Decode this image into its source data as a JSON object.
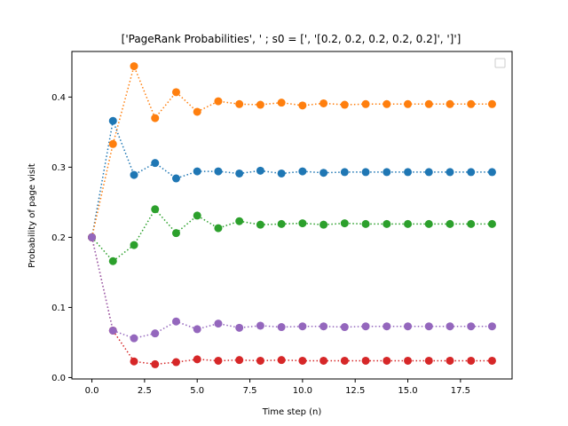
{
  "chart_data": {
    "type": "line",
    "title": "['PageRank Probabilities', ' ; s0 = [', '[0.2, 0.2, 0.2, 0.2, 0.2]', ']']",
    "xlabel": "Time step (n)",
    "ylabel": "Probability of page visit",
    "xlim": [
      -0.95,
      19.95
    ],
    "ylim": [
      -0.002,
      0.465
    ],
    "xticks": [
      0,
      2.5,
      5,
      7.5,
      10,
      12.5,
      15,
      17.5
    ],
    "xtick_labels": [
      "0.0",
      "2.5",
      "5.0",
      "7.5",
      "10.0",
      "12.5",
      "15.0",
      "17.5"
    ],
    "yticks": [
      0.0,
      0.1,
      0.2,
      0.3,
      0.4
    ],
    "ytick_labels": [
      "0.0",
      "0.1",
      "0.2",
      "0.3",
      "0.4"
    ],
    "legend": "top-right (empty)",
    "grid": false,
    "line_style": "dotted",
    "marker": "circle",
    "x": [
      0,
      1,
      2,
      3,
      4,
      5,
      6,
      7,
      8,
      9,
      10,
      11,
      12,
      13,
      14,
      15,
      16,
      17,
      18,
      19
    ],
    "series": [
      {
        "color": "#1f77b4",
        "values": [
          0.2,
          0.366,
          0.289,
          0.306,
          0.284,
          0.294,
          0.294,
          0.291,
          0.295,
          0.291,
          0.294,
          0.292,
          0.293,
          0.293,
          0.293,
          0.293,
          0.293,
          0.293,
          0.293,
          0.293
        ]
      },
      {
        "color": "#ff7f0e",
        "values": [
          0.2,
          0.333,
          0.444,
          0.37,
          0.407,
          0.379,
          0.394,
          0.39,
          0.389,
          0.392,
          0.388,
          0.391,
          0.389,
          0.39,
          0.39,
          0.39,
          0.39,
          0.39,
          0.39,
          0.39
        ]
      },
      {
        "color": "#2ca02c",
        "values": [
          0.2,
          0.166,
          0.189,
          0.24,
          0.206,
          0.231,
          0.213,
          0.223,
          0.218,
          0.219,
          0.22,
          0.218,
          0.22,
          0.219,
          0.219,
          0.219,
          0.219,
          0.219,
          0.219,
          0.219
        ]
      },
      {
        "color": "#d62728",
        "values": [
          0.2,
          0.067,
          0.023,
          0.019,
          0.022,
          0.026,
          0.024,
          0.025,
          0.024,
          0.025,
          0.024,
          0.024,
          0.024,
          0.024,
          0.024,
          0.024,
          0.024,
          0.024,
          0.024,
          0.024
        ]
      },
      {
        "color": "#9467bd",
        "values": [
          0.2,
          0.067,
          0.056,
          0.063,
          0.08,
          0.069,
          0.077,
          0.071,
          0.074,
          0.072,
          0.073,
          0.073,
          0.072,
          0.073,
          0.073,
          0.073,
          0.073,
          0.073,
          0.073,
          0.073
        ]
      }
    ]
  }
}
